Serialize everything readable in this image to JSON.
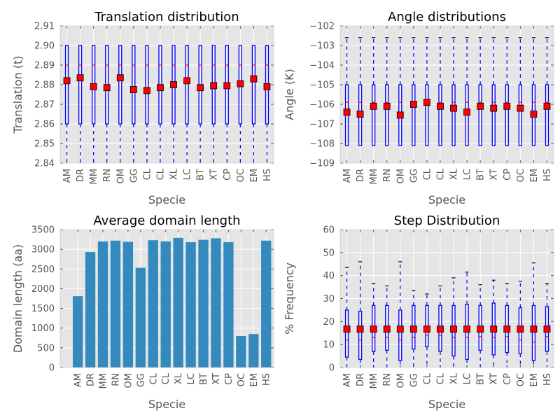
{
  "chart_data": [
    {
      "type": "box",
      "title": "Translation distribution",
      "xlabel": "Specie",
      "ylabel": "Translation (t)",
      "ylim": [
        2.84,
        2.91
      ],
      "yticks": [
        "2.84",
        "2.85",
        "2.86",
        "2.87",
        "2.88",
        "2.89",
        "2.90",
        "2.91"
      ],
      "grid": true,
      "categories": [
        "AM",
        "DR",
        "MM",
        "RN",
        "OM",
        "GG",
        "CL",
        "CL",
        "XL",
        "LC",
        "BT",
        "XT",
        "CP",
        "OC",
        "EM",
        "HS"
      ],
      "boxes": {
        "q1": [
          2.86,
          2.86,
          2.86,
          2.86,
          2.86,
          2.86,
          2.86,
          2.86,
          2.86,
          2.86,
          2.86,
          2.86,
          2.86,
          2.86,
          2.86,
          2.86
        ],
        "q3": [
          2.9,
          2.9,
          2.9,
          2.9,
          2.9,
          2.9,
          2.9,
          2.9,
          2.9,
          2.9,
          2.9,
          2.9,
          2.9,
          2.9,
          2.9,
          2.9
        ],
        "median": [
          2.89,
          2.89,
          2.89,
          2.89,
          2.89,
          2.89,
          2.89,
          2.89,
          2.89,
          2.89,
          2.89,
          2.89,
          2.89,
          2.89,
          2.89,
          2.89
        ],
        "whisker_low": [
          2.84,
          2.84,
          2.84,
          2.84,
          2.84,
          2.84,
          2.84,
          2.84,
          2.84,
          2.84,
          2.84,
          2.84,
          2.84,
          2.84,
          2.84,
          2.84
        ],
        "whisker_high": [
          2.9,
          2.9,
          2.9,
          2.9,
          2.9,
          2.9,
          2.9,
          2.9,
          2.9,
          2.9,
          2.9,
          2.9,
          2.9,
          2.9,
          2.9,
          2.9
        ],
        "mean": [
          2.882,
          2.8835,
          2.879,
          2.8785,
          2.8835,
          2.8775,
          2.877,
          2.8785,
          2.88,
          2.882,
          2.8785,
          2.8795,
          2.8795,
          2.8805,
          2.883,
          2.879
        ]
      }
    },
    {
      "type": "box",
      "title": "Angle distributions",
      "xlabel": "Specie",
      "ylabel": "Angle (K)",
      "ylim": [
        -109,
        -102
      ],
      "yticks": [
        "−102",
        "−103",
        "−104",
        "−105",
        "−106",
        "−107",
        "−108",
        "−109"
      ],
      "grid": true,
      "categories": [
        "AM",
        "DR",
        "MM",
        "RN",
        "OM",
        "GG",
        "CL",
        "CL",
        "XL",
        "LC",
        "BT",
        "XT",
        "CP",
        "OC",
        "EM",
        "HS"
      ],
      "boxes": {
        "q1": [
          -108.1,
          -108.1,
          -108.1,
          -108.1,
          -108.1,
          -108.1,
          -108.1,
          -108.1,
          -108.1,
          -108.1,
          -108.1,
          -108.1,
          -108.1,
          -108.1,
          -108.1,
          -108.1
        ],
        "q3": [
          -105,
          -105,
          -105,
          -105,
          -105,
          -105,
          -105,
          -105,
          -105,
          -105,
          -105,
          -105,
          -105,
          -105,
          -105,
          -105
        ],
        "median": [
          -105.9,
          -105.9,
          -105.9,
          -105.9,
          -105.9,
          -105.9,
          -105.9,
          -105.9,
          -105.9,
          -105.9,
          -105.9,
          -105.9,
          -105.9,
          -105.9,
          -105.9,
          -105.9
        ],
        "whisker_low": [
          -108.1,
          -108.1,
          -108.1,
          -108.1,
          -108.1,
          -108.1,
          -108.1,
          -108.1,
          -108.1,
          -108.1,
          -108.1,
          -108.1,
          -108.1,
          -108.1,
          -108.1,
          -108.1
        ],
        "whisker_high": [
          -102.6,
          -102.6,
          -102.6,
          -102.6,
          -102.6,
          -102.6,
          -102.6,
          -102.6,
          -102.6,
          -102.6,
          -102.6,
          -102.6,
          -102.6,
          -102.6,
          -102.6,
          -102.6
        ],
        "mean": [
          -106.4,
          -106.5,
          -106.1,
          -106.1,
          -106.55,
          -106.0,
          -105.9,
          -106.1,
          -106.2,
          -106.4,
          -106.1,
          -106.2,
          -106.1,
          -106.2,
          -106.5,
          -106.1
        ]
      }
    },
    {
      "type": "bar",
      "title": "Average domain length",
      "xlabel": "Specie",
      "ylabel": "Domain length (aa)",
      "ylim": [
        0,
        3500
      ],
      "yticks": [
        "0",
        "500",
        "1000",
        "1500",
        "2000",
        "2500",
        "3000",
        "3500"
      ],
      "grid": true,
      "categories": [
        "AM",
        "DR",
        "MM",
        "RN",
        "OM",
        "GG",
        "CL",
        "CL",
        "XL",
        "LC",
        "BT",
        "XT",
        "CP",
        "OC",
        "EM",
        "HS"
      ],
      "values": [
        1810,
        2930,
        3200,
        3220,
        3190,
        2530,
        3230,
        3200,
        3290,
        3180,
        3240,
        3280,
        3180,
        800,
        850,
        3220
      ]
    },
    {
      "type": "box",
      "title": "Step Distribution",
      "xlabel": "Specie",
      "ylabel": "% Frequency",
      "ylim": [
        0,
        60
      ],
      "yticks": [
        "0",
        "10",
        "20",
        "30",
        "40",
        "50",
        "60"
      ],
      "grid": true,
      "categories": [
        "AM",
        "DR",
        "MM",
        "RN",
        "OM",
        "GG",
        "CL",
        "CL",
        "XL",
        "LC",
        "BT",
        "XT",
        "CP",
        "OC",
        "EM",
        "HS"
      ],
      "boxes": {
        "q1": [
          4.5,
          3.5,
          7,
          7.5,
          3,
          8,
          9,
          7,
          5,
          3.5,
          7.5,
          5.5,
          6.5,
          6,
          3,
          7
        ],
        "q3": [
          25,
          24.5,
          27,
          27,
          25,
          27,
          27,
          27,
          27,
          27.5,
          27,
          28,
          27,
          26,
          27,
          26.5
        ],
        "median": [
          12,
          12,
          13,
          13,
          12,
          13,
          14,
          14,
          13,
          13,
          13.5,
          13,
          13.5,
          12,
          11,
          13.5
        ],
        "whisker_low": [
          0,
          0,
          0,
          0,
          0,
          0,
          0,
          0,
          0,
          0,
          0,
          0,
          0,
          0,
          0,
          0
        ],
        "whisker_high": [
          43.5,
          46,
          36.5,
          35.5,
          46,
          33.5,
          32,
          35.5,
          39,
          41.5,
          36,
          38,
          36.5,
          37.5,
          45.5,
          36.5
        ],
        "mean": [
          16.7,
          16.7,
          16.7,
          16.7,
          16.7,
          16.7,
          16.7,
          16.7,
          16.7,
          16.7,
          16.7,
          16.7,
          16.7,
          16.7,
          16.7,
          16.7
        ]
      }
    }
  ],
  "colors": {
    "axes_bg": "#e5e5e5",
    "grid": "#ffffff",
    "box": "#0000ff",
    "median": "#ff0000",
    "mean_fill": "#ff0000",
    "bar": "#348abd",
    "text": "#555555"
  }
}
